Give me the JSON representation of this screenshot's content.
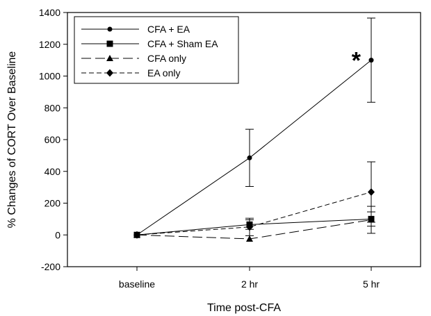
{
  "chart_data": {
    "type": "line",
    "xlabel": "Time post-CFA",
    "ylabel": "% Changes of CORT Over Baseline",
    "categories": [
      "baseline",
      "2 hr",
      "5 hr"
    ],
    "ylim": [
      -200,
      1400
    ],
    "yticks": [
      -200,
      0,
      200,
      400,
      600,
      800,
      1000,
      1200,
      1400
    ],
    "grid": false,
    "legend_position": "top-left",
    "series": [
      {
        "name": "CFA + EA",
        "marker": "circle",
        "dash": "solid",
        "values": [
          0,
          485,
          1100
        ],
        "errors": [
          0,
          180,
          265
        ]
      },
      {
        "name": "CFA + Sham EA",
        "marker": "square",
        "dash": "solid",
        "values": [
          0,
          65,
          100
        ],
        "errors": [
          0,
          30,
          45
        ]
      },
      {
        "name": "CFA only",
        "marker": "triangle",
        "dash": "long-dash",
        "values": [
          0,
          -25,
          95
        ],
        "errors": [
          0,
          0,
          85
        ]
      },
      {
        "name": "EA only",
        "marker": "diamond",
        "dash": "dash",
        "values": [
          0,
          50,
          270
        ],
        "errors": [
          0,
          55,
          190
        ]
      }
    ],
    "annotations": [
      {
        "text": "*",
        "series": "CFA + EA",
        "category": "5 hr"
      }
    ],
    "colors": {
      "line": "#000000",
      "background": "#ffffff"
    }
  }
}
